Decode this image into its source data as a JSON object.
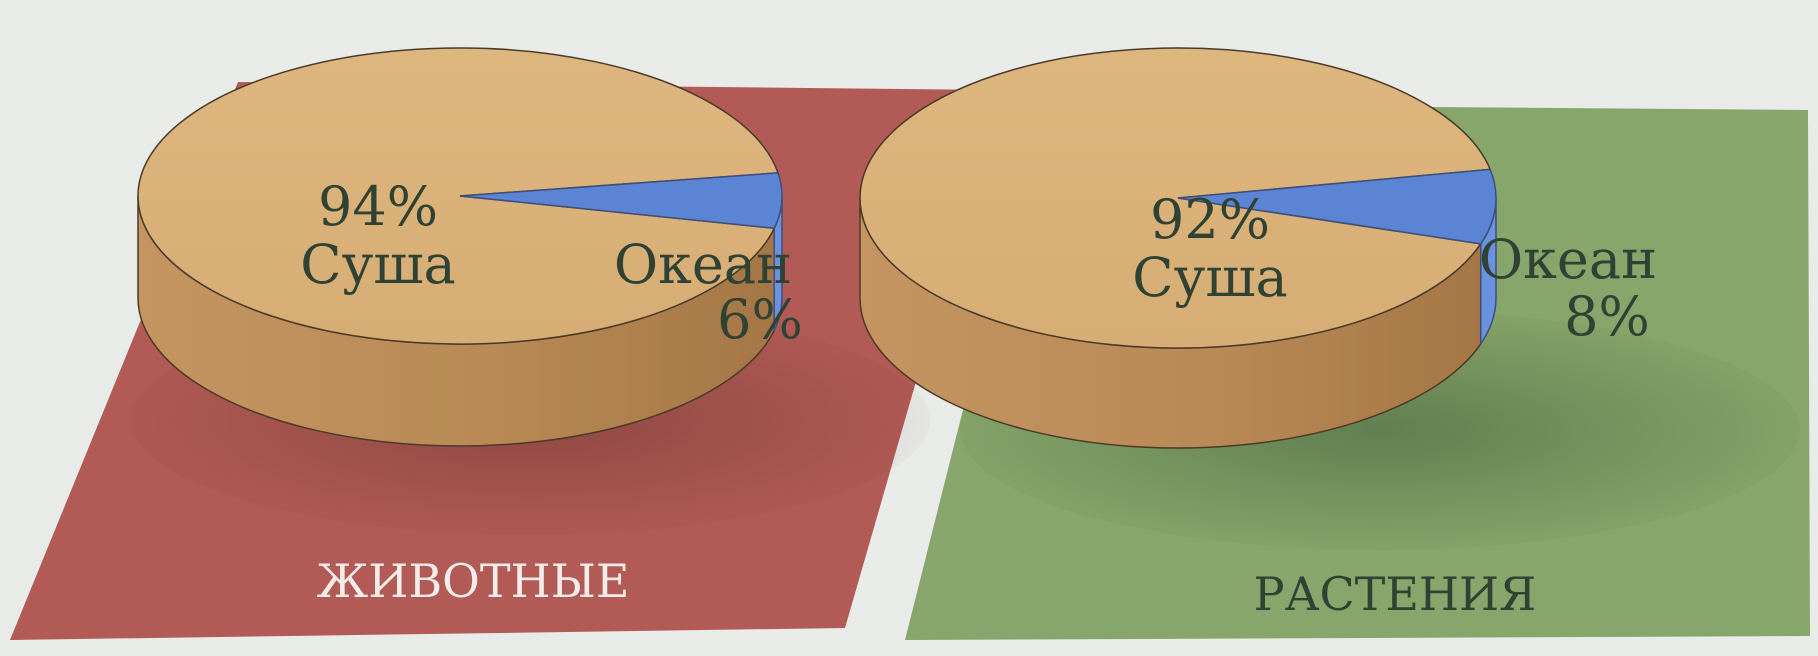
{
  "chart_data": [
    {
      "type": "pie",
      "title": "ЖИВОТНЫЕ",
      "slices": [
        {
          "label": "Суша",
          "value_label": "94%",
          "value": 94
        },
        {
          "label": "Океан",
          "value_label": "6%",
          "value": 6
        }
      ]
    },
    {
      "type": "pie",
      "title": "РАСТЕНИЯ",
      "slices": [
        {
          "label": "Суша",
          "value_label": "92%",
          "value": 92
        },
        {
          "label": "Океан",
          "value_label": "8%",
          "value": 8
        }
      ]
    }
  ],
  "colors": {
    "page_background": "#e9ebe8",
    "animals_panel": "#b25a55",
    "plants_panel": "#86a66b",
    "land_top": "#d9b27b",
    "land_side": "#b98b55",
    "ocean_top": "#5b84d4",
    "ocean_side": "#6a92de",
    "label_text": "#2f4233",
    "animals_title_text": "#f3ece8",
    "plants_title_text": "#2f4233"
  }
}
